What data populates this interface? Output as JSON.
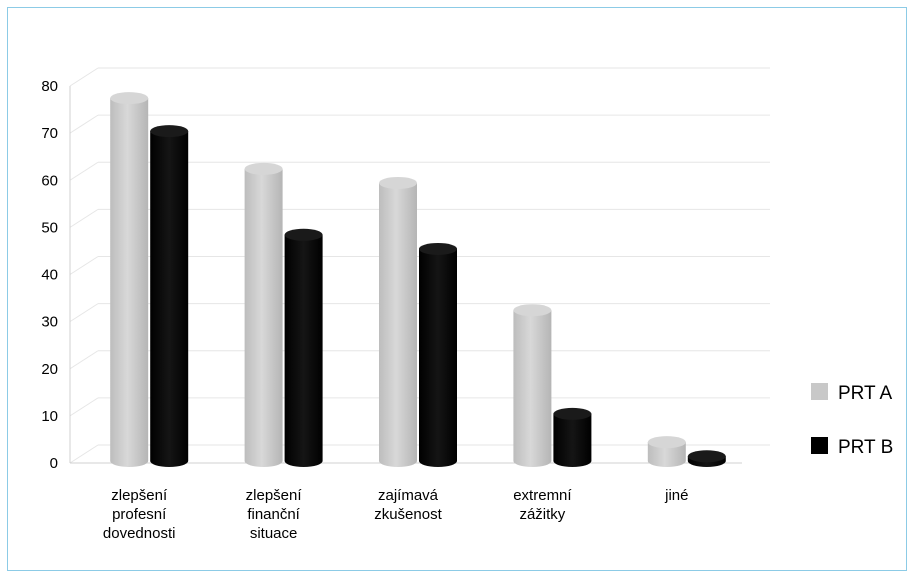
{
  "chart_data": {
    "type": "bar",
    "categories": [
      [
        "zlepšení",
        "profesní",
        "dovednosti"
      ],
      [
        "zlepšení",
        "finanční",
        "situace"
      ],
      [
        "zajímavá",
        "zkušenost"
      ],
      [
        "extremní",
        "zážitky"
      ],
      [
        "jiné"
      ]
    ],
    "series": [
      {
        "name": "PRT A",
        "values": [
          77,
          62,
          59,
          32,
          4
        ],
        "color": "#c8c8c8"
      },
      {
        "name": "PRT B",
        "values": [
          70,
          48,
          45,
          10,
          1
        ],
        "color": "#000000"
      }
    ],
    "ylim": [
      0,
      80
    ],
    "yticks": [
      0,
      10,
      20,
      30,
      40,
      50,
      60,
      70,
      80
    ],
    "grid": true,
    "legend": "right",
    "title": "",
    "xlabel": "",
    "ylabel": ""
  }
}
